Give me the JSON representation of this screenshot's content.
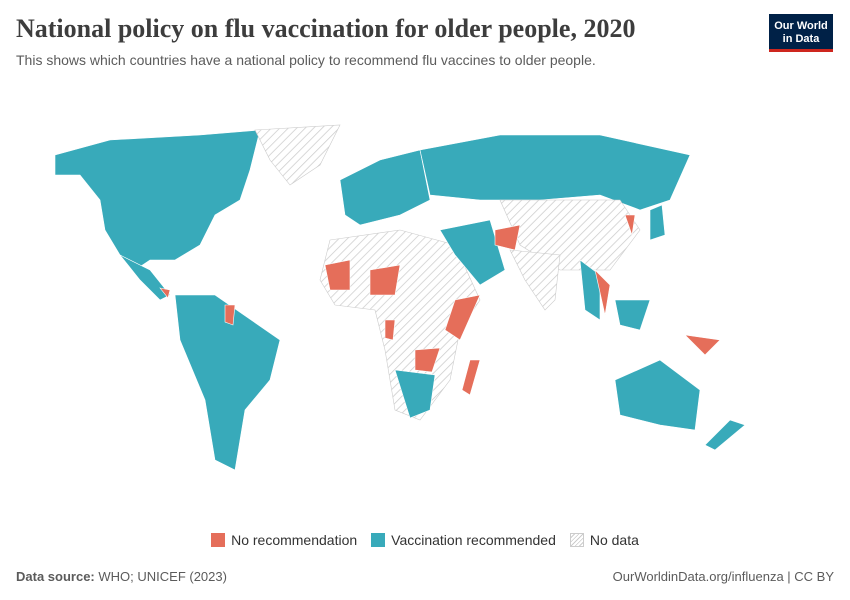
{
  "header": {
    "title": "National policy on flu vaccination for older people, 2020",
    "subtitle": "This shows which countries have a national policy to recommend flu vaccines to older people."
  },
  "logo": {
    "line1": "Our World",
    "line2": "in Data"
  },
  "legend": {
    "items": [
      {
        "label": "No recommendation",
        "color": "#e56e5a"
      },
      {
        "label": "Vaccination recommended",
        "color": "#38aaba"
      },
      {
        "label": "No data",
        "color": "#cccccc"
      }
    ]
  },
  "footer": {
    "source_label": "Data source:",
    "source": "WHO; UNICEF (2023)",
    "link": "OurWorldinData.org/influenza | CC BY"
  }
}
